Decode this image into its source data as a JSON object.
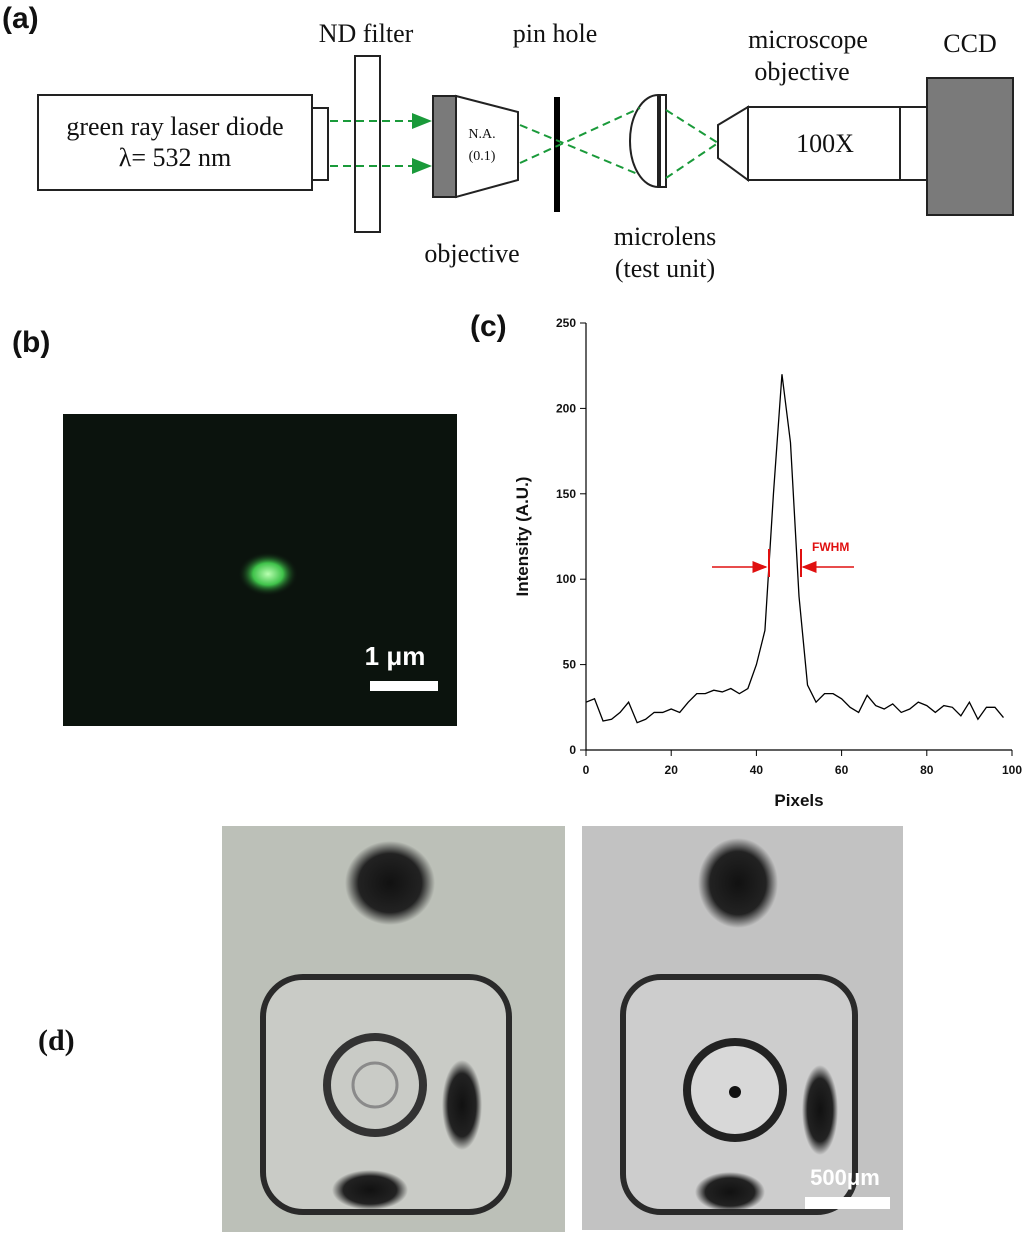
{
  "panels": {
    "a": {
      "label": "(a)",
      "nd_filter": "ND filter",
      "pin_hole": "pin hole",
      "microscope_line1": "microscope",
      "microscope_line2": "objective",
      "ccd": "CCD",
      "laser_line1": "green ray laser diode",
      "laser_line2": "λ= 532 nm",
      "na_line1": "N.A.",
      "na_line2": "(0.1)",
      "objective": "objective",
      "microlens_line1": "microlens",
      "microlens_line2": "(test unit)",
      "magnification": "100X"
    },
    "b": {
      "label": "(b)",
      "scale": "1 μm"
    },
    "c": {
      "label": "(c)"
    },
    "d": {
      "label": "(d)",
      "scale": "500μm"
    }
  },
  "chart_data": {
    "type": "line",
    "x_label": "Pixels",
    "y_label": "Intensity (A.U.)",
    "color": "#000000",
    "x": [
      0,
      2,
      4,
      6,
      8,
      10,
      12,
      14,
      16,
      18,
      20,
      22,
      24,
      26,
      28,
      30,
      32,
      34,
      36,
      38,
      40,
      42,
      44,
      46,
      48,
      50,
      52,
      54,
      56,
      58,
      60,
      62,
      64,
      66,
      68,
      70,
      72,
      74,
      76,
      78,
      80,
      82,
      84,
      86,
      88,
      90,
      92,
      94,
      96,
      98
    ],
    "values": [
      28,
      30,
      17,
      18,
      22,
      28,
      16,
      18,
      22,
      22,
      24,
      22,
      28,
      33,
      33,
      35,
      34,
      36,
      33,
      36,
      50,
      70,
      150,
      220,
      180,
      90,
      38,
      28,
      33,
      33,
      30,
      25,
      22,
      32,
      26,
      24,
      27,
      22,
      24,
      28,
      26,
      22,
      26,
      25,
      20,
      28,
      18,
      25,
      25,
      19
    ],
    "xlim": [
      0,
      100
    ],
    "ylim": [
      0,
      250
    ],
    "xticks": [
      0,
      20,
      40,
      60,
      80,
      100
    ],
    "yticks": [
      0,
      50,
      100,
      150,
      200,
      250
    ],
    "annotation": "FWHM",
    "annotation_color": "#e01010"
  }
}
